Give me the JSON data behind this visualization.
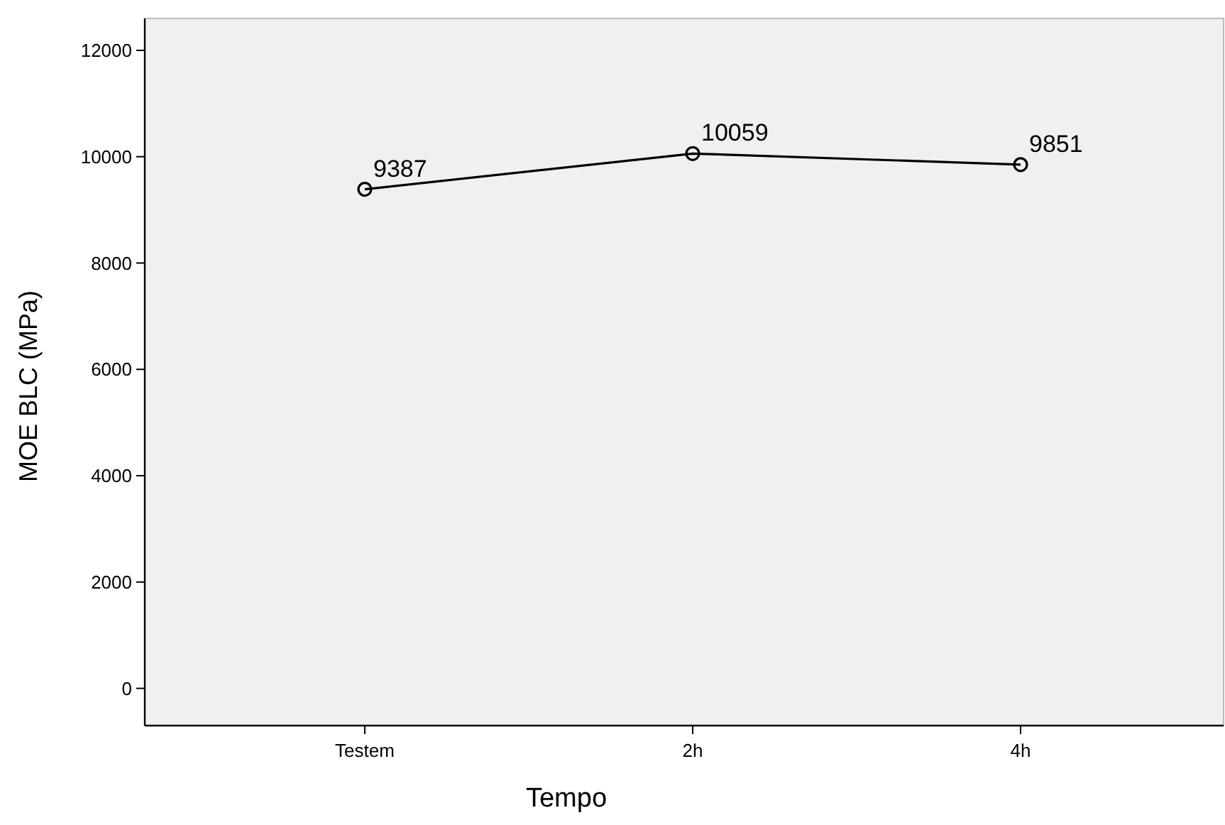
{
  "chart_data": {
    "type": "line",
    "xlabel": "Tempo",
    "ylabel": "MOE BLC (MPa)",
    "categories": [
      "Testem",
      "2h",
      "4h"
    ],
    "series": [
      {
        "color": "#000000",
        "values": [
          9387,
          10059,
          9851
        ]
      }
    ],
    "ylim": [
      -700,
      12600
    ],
    "yticks": [
      0,
      2000,
      4000,
      6000,
      8000,
      10000,
      12000
    ],
    "data_labels": true,
    "marker": "circle",
    "grid": false
  }
}
